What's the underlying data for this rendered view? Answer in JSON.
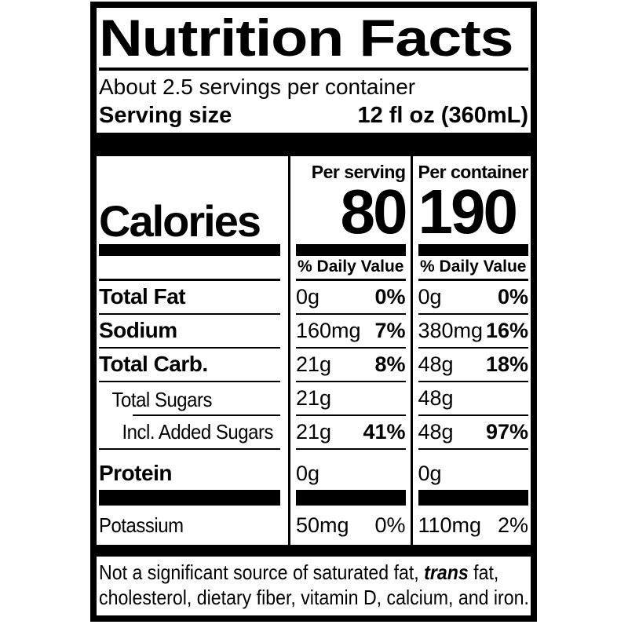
{
  "title": "Nutrition Facts",
  "servings_per_container": "About 2.5 servings per container",
  "serving_size": {
    "label": "Serving size",
    "value": "12 fl oz (360mL)"
  },
  "calories": {
    "label": "Calories",
    "per_serving": {
      "header": "Per serving",
      "value": "80"
    },
    "per_container": {
      "header": "Per container",
      "value": "190"
    }
  },
  "daily_value": {
    "per_serving_header": "% Daily Value",
    "per_container_header": "% Daily Value"
  },
  "nutrients": [
    {
      "name": "Total Fat",
      "serving": {
        "amount": "0g",
        "dv": "0%"
      },
      "container": {
        "amount": "0g",
        "dv": "0%"
      }
    },
    {
      "name": "Sodium",
      "serving": {
        "amount": "160mg",
        "dv": "7%"
      },
      "container": {
        "amount": "380mg",
        "dv": "16%"
      }
    },
    {
      "name": "Total Carb.",
      "serving": {
        "amount": "21g",
        "dv": "8%"
      },
      "container": {
        "amount": "48g",
        "dv": "18%"
      }
    },
    {
      "name": "Total Sugars",
      "serving": {
        "amount": "21g",
        "dv": ""
      },
      "container": {
        "amount": "48g",
        "dv": ""
      }
    },
    {
      "name": "Incl. Added Sugars",
      "serving": {
        "amount": "21g",
        "dv": "41%"
      },
      "container": {
        "amount": "48g",
        "dv": "97%"
      }
    },
    {
      "name": "Protein",
      "serving": {
        "amount": "0g",
        "dv": ""
      },
      "container": {
        "amount": "0g",
        "dv": ""
      }
    },
    {
      "name": "Potassium",
      "serving": {
        "amount": "50mg",
        "dv": "0%"
      },
      "container": {
        "amount": "110mg",
        "dv": "2%"
      }
    }
  ],
  "footnote": {
    "line1_pre": "Not a significant source of saturated fat, ",
    "line1_emphasis": "trans",
    "line1_post": " fat,",
    "line2": "cholesterol, dietary fiber, vitamin D, calcium, and iron."
  },
  "colors": {
    "ink": "#000000",
    "paper": "#ffffff"
  }
}
